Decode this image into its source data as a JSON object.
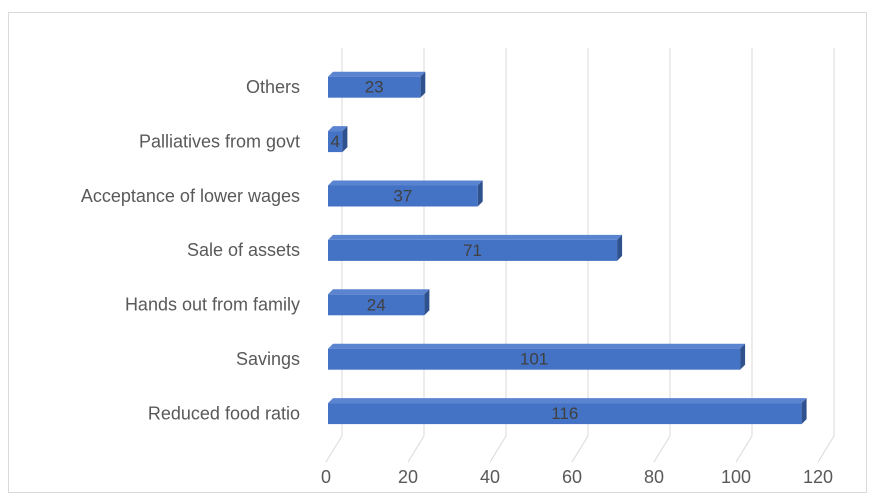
{
  "chart_data": {
    "type": "bar",
    "orientation": "horizontal",
    "style": "3d",
    "categories": [
      "Reduced food ratio",
      "Savings",
      "Hands out from family",
      "Sale of assets",
      "Acceptance of lower wages",
      "Palliatives from govt",
      "Others"
    ],
    "values": [
      116,
      101,
      24,
      71,
      37,
      4,
      23
    ],
    "title": "",
    "xlabel": "",
    "ylabel": "",
    "xlim": [
      0,
      120
    ],
    "xticks": [
      0,
      20,
      40,
      60,
      80,
      100,
      120
    ],
    "grid": "vertical",
    "legend": "none",
    "data_labels": true,
    "colors": {
      "bar_front": "#4472c4",
      "bar_top": "#5b84d0",
      "bar_side": "#2f528f",
      "grid": "#d9d9d9",
      "text": "#595959"
    }
  }
}
